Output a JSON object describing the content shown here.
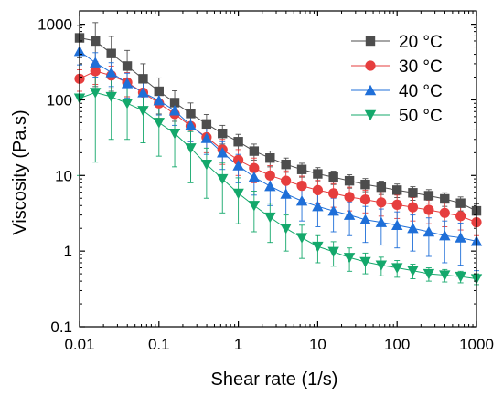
{
  "chart_data": {
    "type": "scatter",
    "title": "",
    "xlabel": "Shear rate (1/s)",
    "ylabel": "Viscosity (Pa.s)",
    "xscale": "log",
    "yscale": "log",
    "xlim": [
      0.01,
      1000
    ],
    "ylim": [
      0.1,
      1500
    ],
    "grid": false,
    "legend_position": "top-right",
    "x_ticks": [
      {
        "value": 0.01,
        "label": "0.01"
      },
      {
        "value": 0.1,
        "label": "0.1"
      },
      {
        "value": 1,
        "label": "1"
      },
      {
        "value": 10,
        "label": "10"
      },
      {
        "value": 100,
        "label": "100"
      },
      {
        "value": 1000,
        "label": "1000"
      }
    ],
    "y_ticks": [
      {
        "value": 0.1,
        "label": "0.1"
      },
      {
        "value": 1,
        "label": "1"
      },
      {
        "value": 10,
        "label": "10"
      },
      {
        "value": 100,
        "label": "100"
      },
      {
        "value": 1000,
        "label": "1000"
      }
    ],
    "x": [
      0.01,
      0.0158,
      0.0251,
      0.0398,
      0.0631,
      0.1,
      0.158,
      0.251,
      0.398,
      0.631,
      1,
      1.58,
      2.51,
      3.98,
      6.31,
      10,
      15.8,
      25.1,
      39.8,
      63.1,
      100,
      158,
      251,
      398,
      631,
      1000
    ],
    "series": [
      {
        "name": "20 °C",
        "color": "#4d4d4d",
        "marker": "square",
        "values": [
          660,
          600,
          410,
          280,
          190,
          130,
          92,
          66,
          48,
          36,
          28,
          21,
          17,
          14,
          12,
          10.5,
          9.5,
          8.5,
          7.6,
          7.0,
          6.4,
          5.9,
          5.4,
          4.9,
          4.3,
          3.4
        ],
        "errors": [
          300,
          450,
          280,
          170,
          110,
          65,
          40,
          25,
          16,
          10,
          7,
          5,
          4,
          3,
          2.5,
          2.2,
          1.9,
          1.7,
          1.5,
          1.4,
          1.3,
          1.2,
          1.1,
          1.0,
          0.9,
          0.8
        ]
      },
      {
        "name": "30 °C",
        "color": "#e63e3e",
        "marker": "circle",
        "values": [
          190,
          240,
          210,
          170,
          125,
          90,
          65,
          45,
          32,
          22,
          16,
          12.5,
          10,
          8.5,
          7.3,
          6.4,
          5.8,
          5.2,
          4.8,
          4.4,
          4.1,
          3.8,
          3.5,
          3.2,
          2.9,
          2.4
        ],
        "errors": [
          60,
          80,
          70,
          60,
          45,
          33,
          25,
          17,
          12,
          8,
          6,
          4.5,
          3.5,
          3,
          2.5,
          2.2,
          2,
          1.8,
          1.6,
          1.5,
          1.4,
          1.3,
          1.2,
          1.1,
          1.0,
          0.8
        ]
      },
      {
        "name": "40 °C",
        "color": "#1f6fd8",
        "marker": "triangle-up",
        "values": [
          440,
          310,
          230,
          165,
          125,
          98,
          72,
          46,
          31,
          20,
          13.5,
          9.5,
          7.2,
          5.7,
          4.6,
          3.9,
          3.4,
          3.0,
          2.6,
          2.4,
          2.2,
          2.0,
          1.8,
          1.6,
          1.5,
          1.35
        ],
        "errors": [
          150,
          110,
          80,
          60,
          45,
          35,
          26,
          18,
          12,
          8,
          5.5,
          4,
          3.2,
          2.6,
          2.1,
          1.8,
          1.6,
          1.4,
          1.3,
          1.2,
          1.1,
          1.0,
          0.95,
          0.9,
          0.85,
          0.8
        ]
      },
      {
        "name": "50 °C",
        "color": "#14a86b",
        "marker": "triangle-down",
        "values": [
          105,
          125,
          110,
          90,
          72,
          50,
          36,
          23,
          14,
          9,
          5.8,
          4.0,
          2.8,
          2.0,
          1.5,
          1.15,
          0.98,
          0.82,
          0.72,
          0.65,
          0.6,
          0.55,
          0.5,
          0.48,
          0.46,
          0.43
        ],
        "errors": [
          95,
          110,
          80,
          60,
          45,
          32,
          23,
          15,
          9,
          5.8,
          3.5,
          2.2,
          1.5,
          1.0,
          0.7,
          0.45,
          0.35,
          0.28,
          0.22,
          0.18,
          0.15,
          0.12,
          0.1,
          0.09,
          0.08,
          0.07
        ]
      }
    ]
  }
}
